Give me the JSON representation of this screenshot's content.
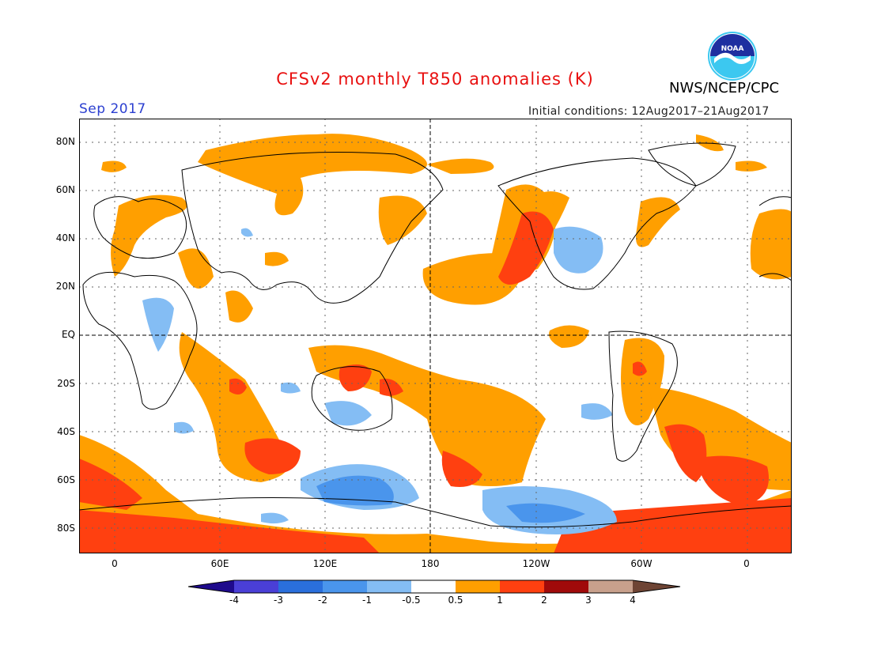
{
  "title": "CFSv2 monthly T850 anomalies (K)",
  "agency": "NWS/NCEP/CPC",
  "logo_text": "NOAA",
  "month_label": "Sep 2017",
  "initial_conditions": "Initial conditions: 12Aug2017–21Aug2017",
  "lat_labels": [
    "80N",
    "60N",
    "40N",
    "20N",
    "EQ",
    "20S",
    "40S",
    "60S",
    "80S"
  ],
  "lon_labels": [
    "0",
    "60E",
    "120E",
    "180",
    "120W",
    "60W",
    "0"
  ],
  "colorbar": {
    "labels": [
      "-4",
      "-3",
      "-2",
      "-1",
      "-0.5",
      "0.5",
      "1",
      "2",
      "3",
      "4"
    ],
    "colors": [
      "#1e0a8c",
      "#4a3fd6",
      "#2a6fdc",
      "#4a95ec",
      "#84bdf4",
      "#ffffff",
      "#ff9f00",
      "#ff4010",
      "#a00a0a",
      "#c8a08c",
      "#6e4434"
    ]
  },
  "anomaly_colors": {
    "warm_1": "#ff9f00",
    "warm_2": "#ff4010",
    "cool_1": "#84bdf4",
    "cool_2": "#4a95ec"
  }
}
